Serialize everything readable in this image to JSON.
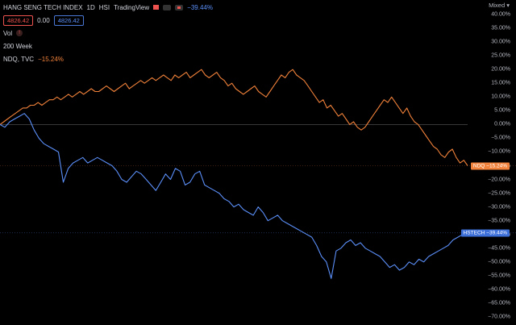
{
  "header": {
    "title": "HANG SENG TECH INDEX",
    "interval": "1D",
    "exchange": "HSI",
    "source": "TradingView",
    "change_pct": "−39.44%",
    "price_sell": "4826.42",
    "spread": "0.00",
    "price_buy": "4826.42"
  },
  "indicators": {
    "vol": "Vol",
    "week": "200 Week",
    "compare_symbol": "NDQ, TVC",
    "compare_change": "−15.24%"
  },
  "scale_mode": "Mixed",
  "tags": {
    "ndq": "NDQ",
    "ndq_value": "−15.24%",
    "hstech": "HSTECH",
    "hstech_value": "−39.44%"
  },
  "chart_data": {
    "type": "line",
    "y_unit": "%",
    "ylim": [
      -70,
      43
    ],
    "yticks": [
      "40.00%",
      "35.00%",
      "30.00%",
      "25.00%",
      "20.00%",
      "15.00%",
      "10.00%",
      "5.00%",
      "0.00%",
      "−5.00%",
      "−10.00%",
      "−15.00%",
      "−20.00%",
      "−25.00%",
      "−30.00%",
      "−35.00%",
      "−40.00%",
      "−45.00%",
      "−50.00%",
      "−55.00%",
      "−60.00%",
      "−65.00%",
      "−70.00%"
    ],
    "ytick_values": [
      40,
      35,
      30,
      25,
      20,
      15,
      10,
      5,
      0,
      -5,
      -10,
      -15,
      -20,
      -25,
      -30,
      -35,
      -40,
      -45,
      -50,
      -55,
      -60,
      -65,
      -70
    ],
    "series": [
      {
        "name": "NDQ",
        "color": "#f0813a",
        "values": [
          0,
          1,
          2,
          3,
          4,
          5,
          6,
          6,
          7,
          7,
          8,
          7,
          8,
          9,
          9,
          10,
          9,
          10,
          11,
          10,
          11,
          12,
          11,
          12,
          13,
          12,
          12,
          13,
          14,
          13,
          12,
          13,
          14,
          15,
          13,
          14,
          15,
          16,
          15,
          16,
          17,
          16,
          17,
          18,
          17,
          16,
          18,
          17,
          18,
          19,
          17,
          18,
          19,
          20,
          18,
          17,
          18,
          19,
          17,
          16,
          14,
          15,
          13,
          12,
          11,
          12,
          13,
          14,
          12,
          11,
          10,
          12,
          14,
          16,
          18,
          17,
          19,
          20,
          18,
          17,
          16,
          14,
          12,
          10,
          8,
          9,
          6,
          7,
          5,
          3,
          4,
          2,
          0,
          1,
          -1,
          -2,
          -1,
          1,
          3,
          5,
          7,
          9,
          8,
          10,
          8,
          6,
          4,
          6,
          3,
          1,
          0,
          -2,
          -4,
          -6,
          -8,
          -9,
          -11,
          -12,
          -10,
          -9,
          -12,
          -14,
          -13,
          -15
        ]
      },
      {
        "name": "HSTECH",
        "color": "#5b8ff9",
        "values": [
          0,
          -1,
          1,
          2,
          3,
          4,
          2,
          -2,
          -5,
          -7,
          -8,
          -9,
          -10,
          -21,
          -16,
          -14,
          -13,
          -12,
          -14,
          -13,
          -12,
          -13,
          -14,
          -15,
          -17,
          -20,
          -21,
          -19,
          -17,
          -18,
          -20,
          -22,
          -24,
          -21,
          -18,
          -20,
          -16,
          -17,
          -22,
          -21,
          -18,
          -17,
          -22,
          -23,
          -24,
          -25,
          -27,
          -28,
          -30,
          -29,
          -31,
          -32,
          -33,
          -30,
          -32,
          -35,
          -34,
          -33,
          -35,
          -36,
          -37,
          -38,
          -39,
          -40,
          -41,
          -44,
          -48,
          -50,
          -56,
          -46,
          -45,
          -43,
          -42,
          -44,
          -43,
          -45,
          -46,
          -47,
          -48,
          -50,
          -52,
          -51,
          -53,
          -52,
          -50,
          -51,
          -49,
          -50,
          -48,
          -47,
          -46,
          -45,
          -44,
          -42,
          -41,
          -40,
          -39.4
        ]
      }
    ]
  }
}
